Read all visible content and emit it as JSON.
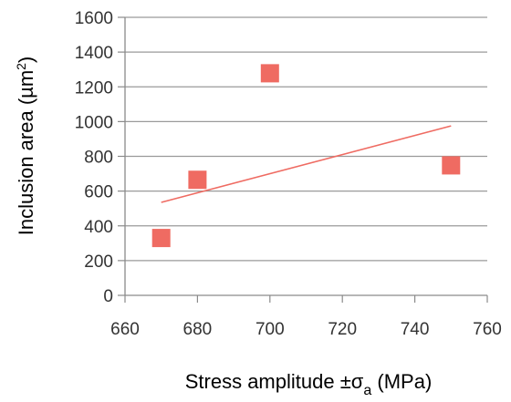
{
  "chart_data": {
    "type": "scatter",
    "title": "",
    "xlabel": "Stress amplitude ±σ",
    "xlabel_subscript": "a",
    "xlabel_suffix": " (MPa)",
    "ylabel": "Inclusion area  (µm",
    "ylabel_superscript": "2",
    "ylabel_suffix": ")",
    "xlim": [
      660,
      760
    ],
    "ylim": [
      0,
      1600
    ],
    "xticks": [
      660,
      680,
      700,
      720,
      740,
      760
    ],
    "yticks": [
      0,
      200,
      400,
      600,
      800,
      1000,
      1200,
      1400,
      1600
    ],
    "grid": "horizontal",
    "legend": "none",
    "series": [
      {
        "marker": "square",
        "color": "#ef6b62",
        "points": [
          {
            "x": 670,
            "y": 330
          },
          {
            "x": 680,
            "y": 665
          },
          {
            "x": 700,
            "y": 1278
          },
          {
            "x": 750,
            "y": 748
          }
        ]
      }
    ],
    "trendline": {
      "color": "#ef6b62",
      "x": [
        670,
        750
      ],
      "y": [
        535,
        975
      ]
    }
  }
}
